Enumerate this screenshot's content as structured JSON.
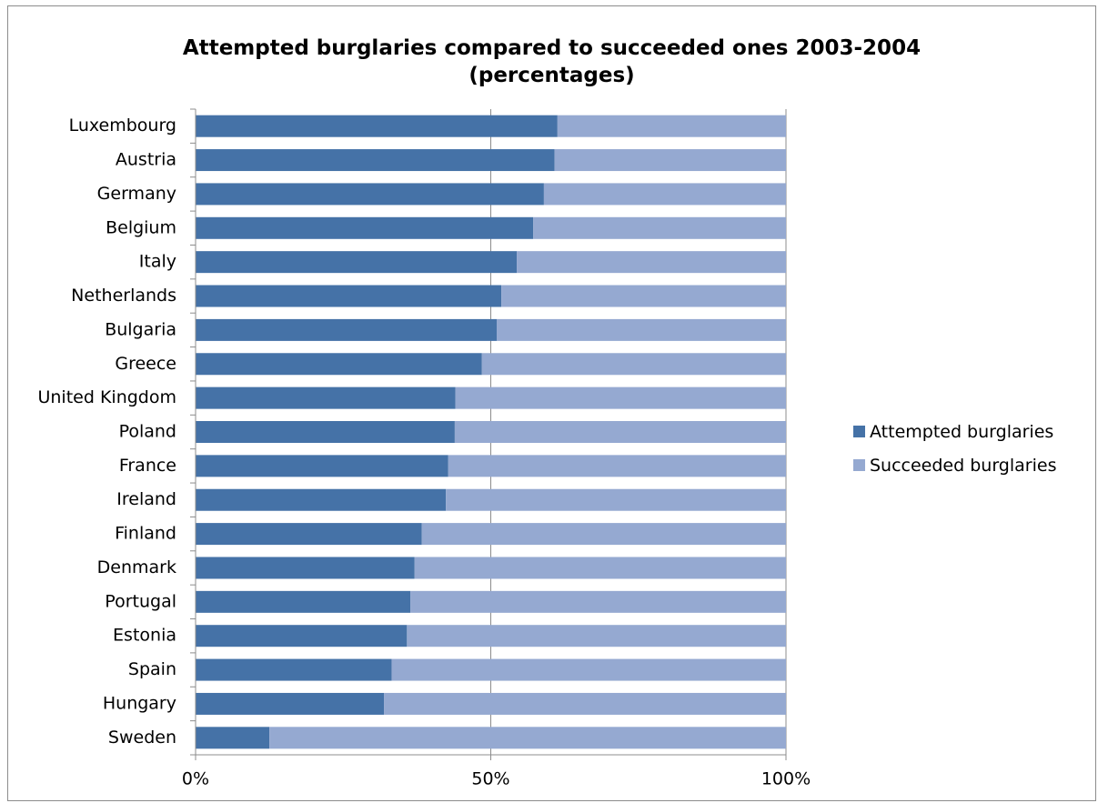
{
  "chart_data": {
    "type": "bar",
    "orientation": "horizontal",
    "stacked": "percent",
    "title": "Attempted burglaries compared to succeeded ones 2003-2004 (percentages)",
    "title_lines": [
      "Attempted burglaries compared to succeeded ones 2003-2004",
      "(percentages)"
    ],
    "categories": [
      "Luxembourg",
      "Austria",
      "Germany",
      "Belgium",
      "Italy",
      "Netherlands",
      "Bulgaria",
      "Greece",
      "United Kingdom",
      "Poland",
      "France",
      "Ireland",
      "Finland",
      "Denmark",
      "Portugal",
      "Estonia",
      "Spain",
      "Hungary",
      "Sweden"
    ],
    "series": [
      {
        "name": "Attempted burglaries",
        "color": "#4572a7",
        "values": [
          61.3,
          60.8,
          59.0,
          57.2,
          54.4,
          51.8,
          51.0,
          48.5,
          44.0,
          43.9,
          42.8,
          42.4,
          38.3,
          37.1,
          36.4,
          35.8,
          33.2,
          31.9,
          12.5
        ]
      },
      {
        "name": "Succeeded burglaries",
        "color": "#95a9d1",
        "values": [
          38.7,
          39.2,
          41.0,
          42.8,
          45.6,
          48.2,
          49.0,
          51.5,
          56.0,
          56.1,
          57.2,
          57.6,
          61.7,
          62.9,
          63.6,
          64.2,
          66.8,
          68.1,
          87.5
        ]
      }
    ],
    "x_ticks": [
      "0%",
      "50%",
      "100%"
    ],
    "xlim": [
      0,
      100
    ],
    "xlabel": "",
    "ylabel": "",
    "grid": true,
    "legend_position": "right"
  }
}
